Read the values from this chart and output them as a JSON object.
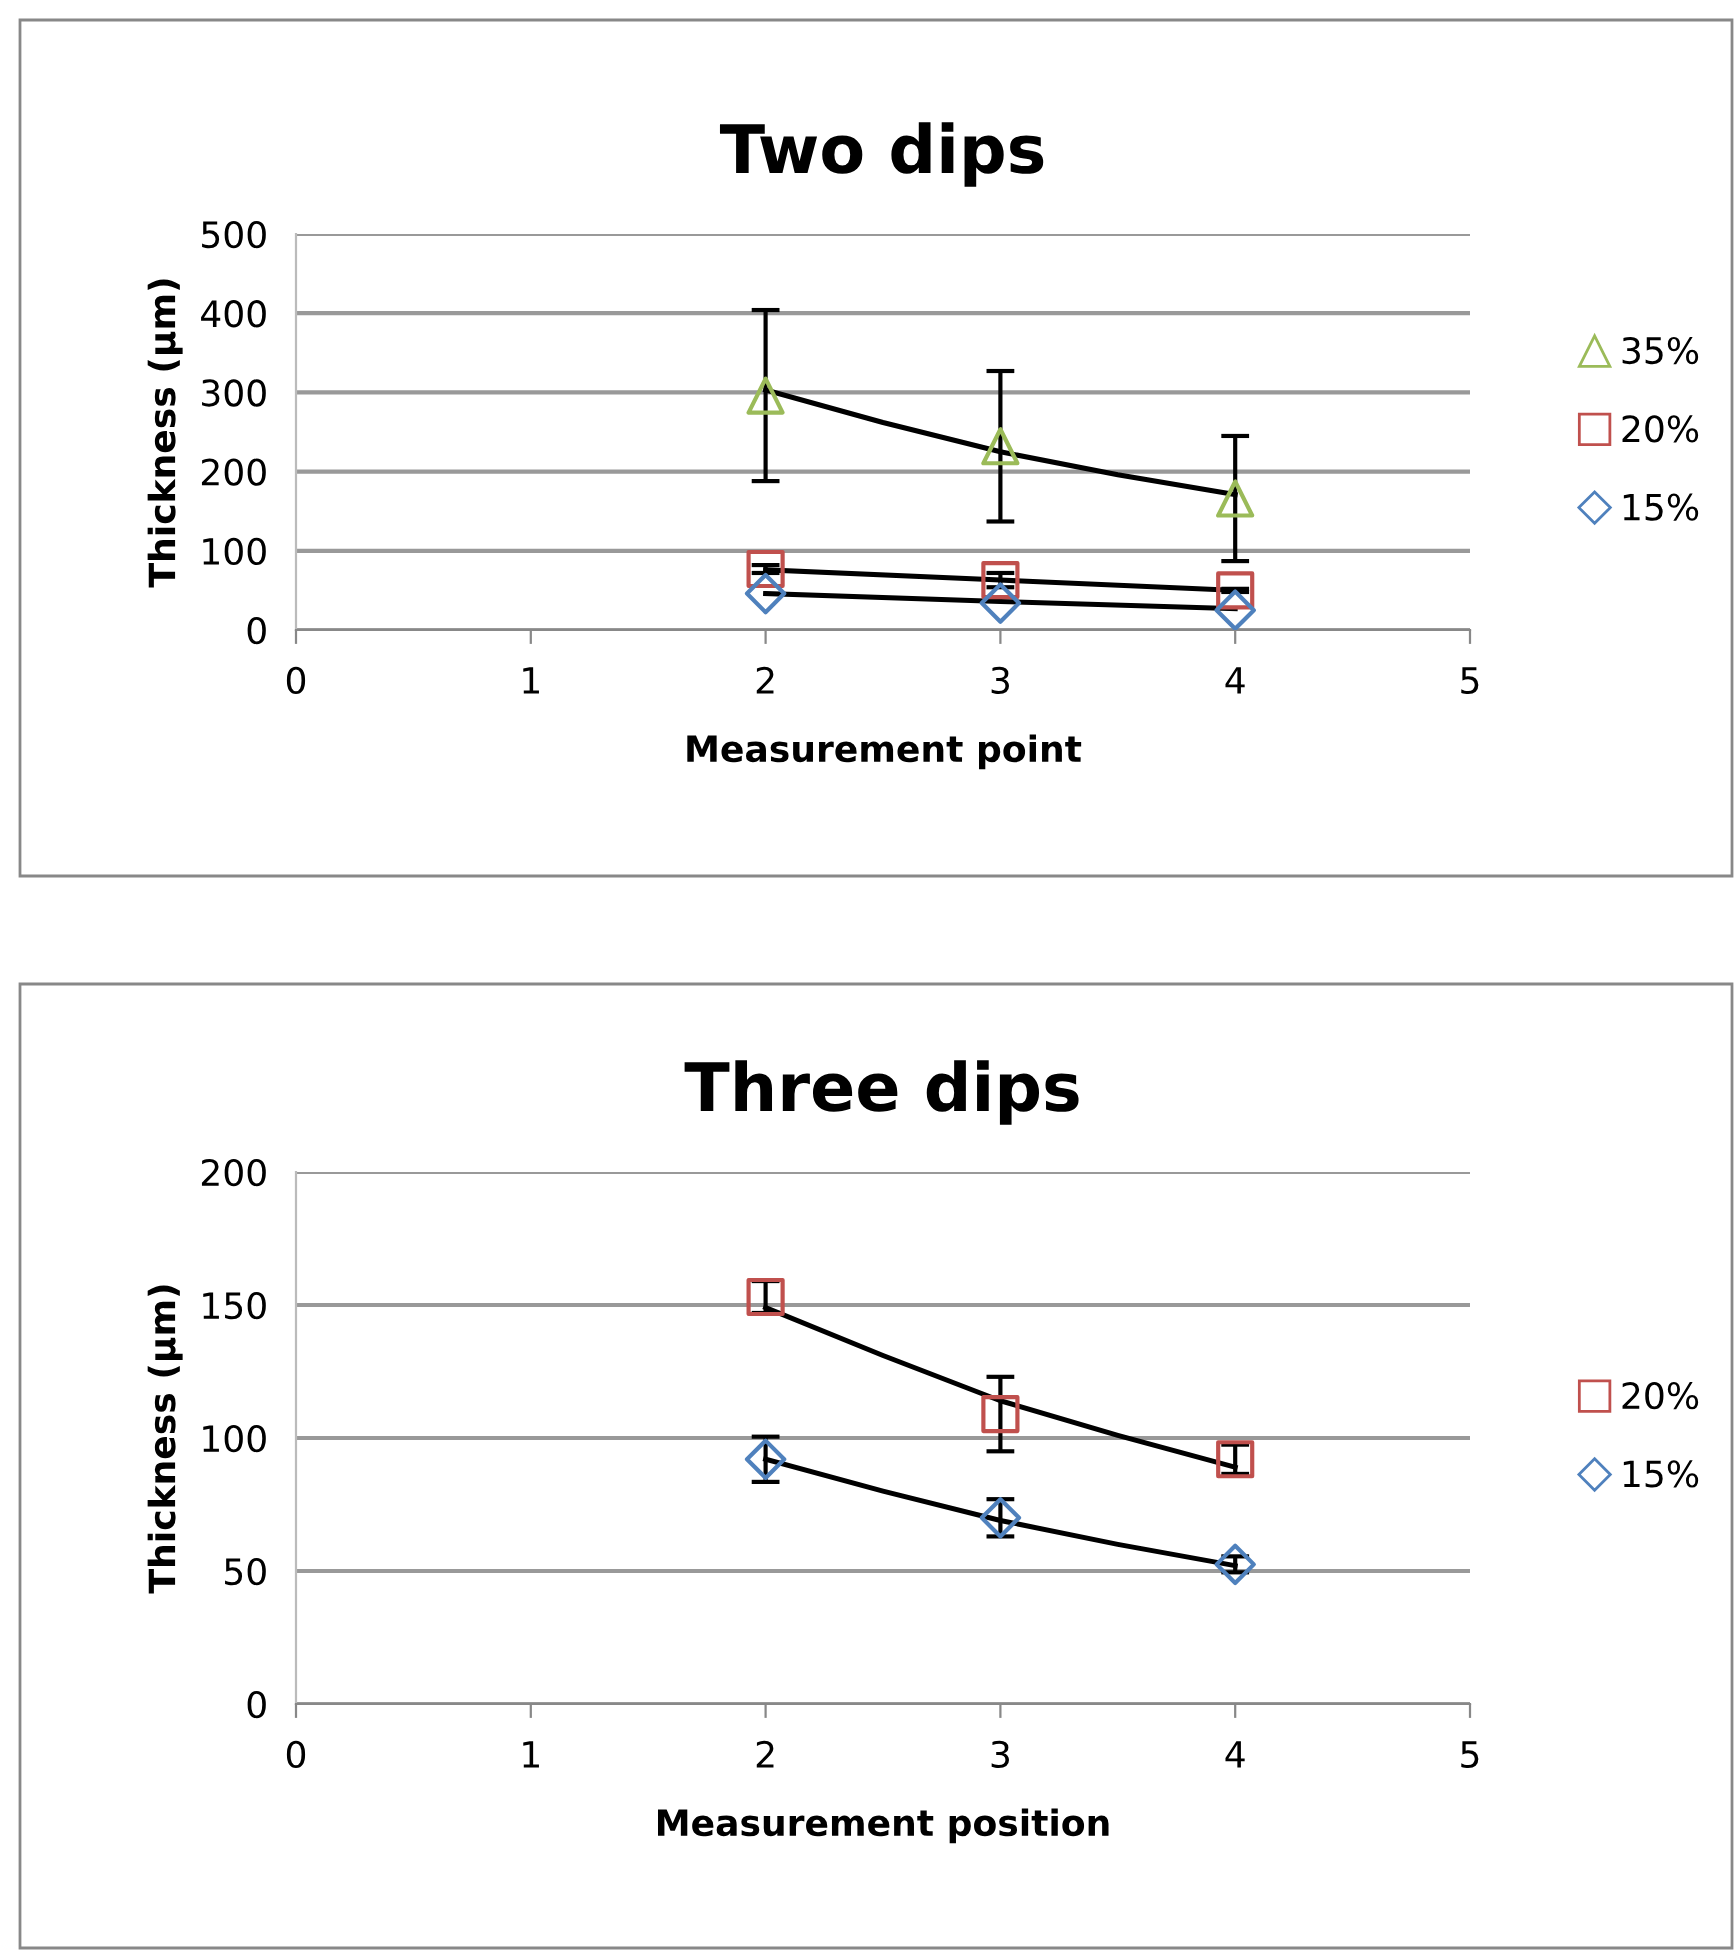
{
  "chart_data": [
    {
      "type": "scatter",
      "title": "Two dips",
      "xlabel": "Measurement point",
      "ylabel": "Thickness (µm)",
      "xlim": [
        0,
        5
      ],
      "xticks": [
        0,
        1,
        2,
        3,
        4,
        5
      ],
      "ylim": [
        0,
        500
      ],
      "yticks": [
        0,
        100,
        200,
        300,
        400,
        500
      ],
      "grid": "y",
      "legend": "right",
      "series": [
        {
          "name": "35%",
          "color": "#9bbb59",
          "marker": "triangle",
          "x": [
            2,
            3,
            4
          ],
          "values": [
            296,
            232,
            166
          ],
          "errors": [
            108,
            95,
            79
          ]
        },
        {
          "name": "20%",
          "color": "#c0504d",
          "marker": "square",
          "x": [
            2,
            3,
            4
          ],
          "values": [
            77,
            63,
            50
          ],
          "errors": [
            5,
            9,
            2
          ]
        },
        {
          "name": "15%",
          "color": "#4f81bd",
          "marker": "diamond",
          "x": [
            2,
            3,
            4
          ],
          "values": [
            46,
            34,
            25
          ]
        },
        {
          "type": "line",
          "color": "#000000",
          "marker": "none",
          "x": [
            2,
            2.5,
            3,
            3.5,
            4
          ],
          "values": [
            303,
            262,
            225,
            196,
            171
          ]
        },
        {
          "type": "line",
          "color": "#000000",
          "marker": "none",
          "x": [
            2,
            3,
            4
          ],
          "values": [
            76,
            63,
            50
          ]
        },
        {
          "type": "line",
          "color": "#000000",
          "marker": "none",
          "x": [
            2,
            3,
            4
          ],
          "values": [
            46,
            36,
            27
          ]
        }
      ]
    },
    {
      "type": "scatter",
      "title": "Three dips",
      "xlabel": "Measurement position",
      "ylabel": "Thickness (µm)",
      "xlim": [
        0,
        5
      ],
      "xticks": [
        0,
        1,
        2,
        3,
        4,
        5
      ],
      "ylim": [
        0,
        200
      ],
      "yticks": [
        0,
        50,
        100,
        150,
        200
      ],
      "grid": "y",
      "legend": "right",
      "series": [
        {
          "name": "20%",
          "color": "#c0504d",
          "marker": "square",
          "x": [
            2,
            3,
            4
          ],
          "values": [
            153,
            109,
            92
          ],
          "errors": [
            6,
            14,
            5.5
          ]
        },
        {
          "name": "15%",
          "color": "#4f81bd",
          "marker": "diamond",
          "x": [
            2,
            3,
            4
          ],
          "values": [
            92,
            70,
            52.5
          ],
          "errors": [
            8.5,
            7,
            3
          ]
        },
        {
          "type": "line",
          "color": "#000000",
          "marker": "none",
          "x": [
            2,
            2.5,
            3,
            3.5,
            4
          ],
          "values": [
            149,
            131,
            114,
            101,
            89
          ]
        },
        {
          "type": "line",
          "color": "#000000",
          "marker": "none",
          "x": [
            2,
            2.5,
            3,
            3.5,
            4
          ],
          "values": [
            92,
            80,
            69,
            60,
            52
          ]
        }
      ]
    }
  ]
}
